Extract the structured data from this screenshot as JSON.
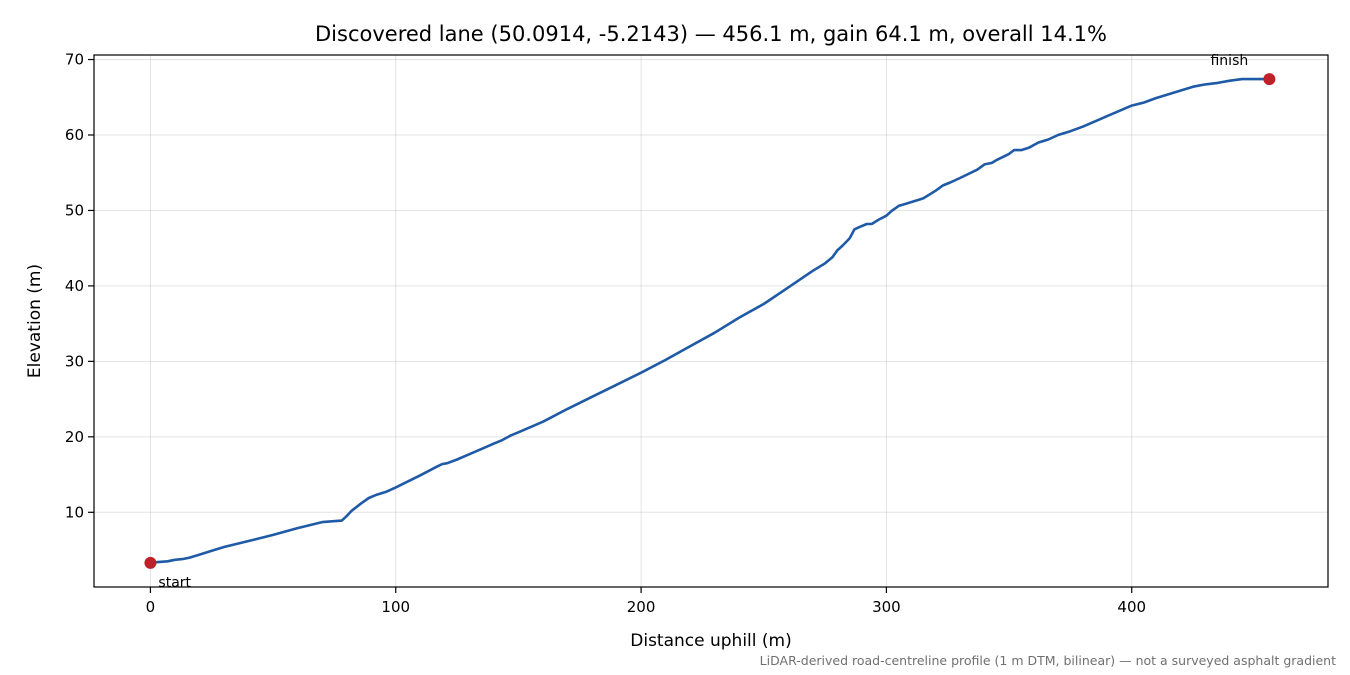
{
  "chart_data": {
    "type": "line",
    "title": "Discovered lane (50.0914, -5.2143) — 456.1 m, gain 64.1 m, overall 14.1%",
    "xlabel": "Distance uphill (m)",
    "ylabel": "Elevation (m)",
    "xlim": [
      -23,
      480
    ],
    "ylim": [
      0.1,
      70.6
    ],
    "xticks": [
      0,
      100,
      200,
      300,
      400
    ],
    "yticks": [
      10,
      20,
      30,
      40,
      50,
      60,
      70
    ],
    "grid": true,
    "series": [
      {
        "color": "#1f5aa6",
        "x": [
          0,
          3,
          7,
          10,
          13,
          16,
          18,
          20,
          25,
          30,
          35,
          40,
          50,
          60,
          65,
          70,
          74,
          78,
          80,
          82,
          86,
          89,
          92,
          96,
          100,
          110,
          117,
          119,
          121,
          125,
          130,
          135,
          140,
          143,
          147,
          150,
          160,
          170,
          180,
          190,
          200,
          210,
          220,
          230,
          240,
          250,
          260,
          270,
          275,
          278,
          280,
          282,
          285,
          287,
          289,
          292,
          294,
          297,
          300,
          302,
          305,
          308,
          315,
          320,
          323,
          326,
          330,
          337,
          340,
          343,
          345,
          350,
          352,
          355,
          358,
          362,
          366,
          370,
          375,
          380,
          385,
          390,
          395,
          400,
          405,
          410,
          420,
          425,
          430,
          435,
          440,
          445,
          450,
          456.1
        ],
        "y": [
          3.3,
          3.4,
          3.5,
          3.7,
          3.8,
          4.0,
          4.2,
          4.4,
          4.9,
          5.4,
          5.8,
          6.2,
          7.0,
          7.9,
          8.3,
          8.7,
          8.8,
          8.9,
          9.5,
          10.2,
          11.2,
          11.9,
          12.3,
          12.7,
          13.3,
          14.9,
          16.1,
          16.4,
          16.5,
          17.0,
          17.7,
          18.4,
          19.1,
          19.5,
          20.2,
          20.6,
          22.0,
          23.7,
          25.3,
          26.9,
          28.5,
          30.2,
          32.0,
          33.8,
          35.8,
          37.6,
          39.8,
          42.0,
          43.0,
          43.8,
          44.7,
          45.3,
          46.3,
          47.5,
          47.8,
          48.2,
          48.2,
          48.8,
          49.3,
          49.9,
          50.6,
          50.9,
          51.6,
          52.6,
          53.3,
          53.7,
          54.3,
          55.4,
          56.1,
          56.3,
          56.7,
          57.5,
          58.0,
          58.0,
          58.3,
          59.0,
          59.4,
          60.0,
          60.5,
          61.1,
          61.8,
          62.5,
          63.2,
          63.9,
          64.3,
          64.9,
          65.9,
          66.4,
          66.7,
          66.9,
          67.2,
          67.4,
          67.4,
          67.4
        ]
      }
    ],
    "endpoints": [
      {
        "label": "start",
        "x": 0,
        "y": 3.3,
        "color": "#c0202a"
      },
      {
        "label": "finish",
        "x": 456.1,
        "y": 67.4,
        "color": "#c0202a"
      }
    ],
    "footnote": "LiDAR-derived road-centreline profile (1 m DTM, bilinear) — not a surveyed asphalt gradient"
  }
}
